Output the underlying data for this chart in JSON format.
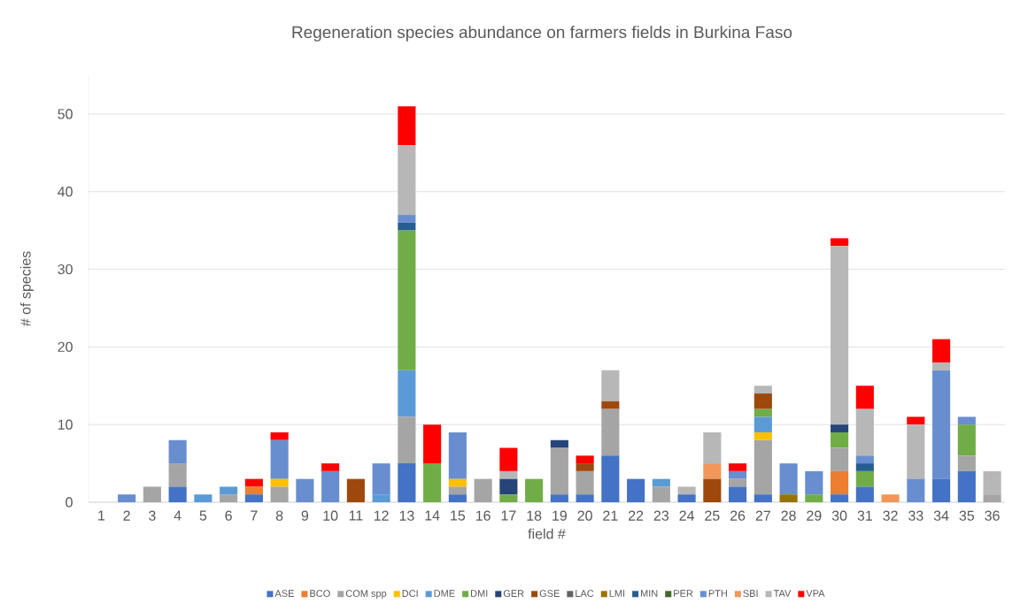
{
  "chart_data": {
    "type": "bar",
    "stacked": true,
    "title": "Regeneration species abundance on farmers fields in Burkina Faso",
    "xlabel": "field #",
    "ylabel": "# of species",
    "categories": [
      "1",
      "2",
      "3",
      "4",
      "5",
      "6",
      "7",
      "8",
      "9",
      "10",
      "11",
      "12",
      "13",
      "14",
      "15",
      "16",
      "17",
      "18",
      "19",
      "20",
      "21",
      "22",
      "23",
      "24",
      "25",
      "26",
      "27",
      "28",
      "29",
      "30",
      "31",
      "32",
      "33",
      "34",
      "35",
      "36"
    ],
    "ylim": [
      0,
      55
    ],
    "yticks": [
      0,
      10,
      20,
      30,
      40,
      50
    ],
    "grid": "y",
    "legend": "bottom",
    "series": [
      {
        "name": "ASE",
        "color": "#4472c4",
        "values": [
          0,
          0,
          0,
          2,
          0,
          0,
          1,
          0,
          0,
          0,
          0,
          0,
          5,
          0,
          1,
          0,
          0,
          0,
          1,
          1,
          6,
          3,
          0,
          1,
          0,
          2,
          1,
          0,
          0,
          1,
          2,
          0,
          0,
          3,
          4,
          0
        ]
      },
      {
        "name": "BCO",
        "color": "#ed7d31",
        "values": [
          0,
          0,
          0,
          0,
          0,
          0,
          1,
          0,
          0,
          0,
          0,
          0,
          0,
          0,
          0,
          0,
          0,
          0,
          0,
          0,
          0,
          0,
          0,
          0,
          0,
          0,
          0,
          0,
          0,
          3,
          0,
          0,
          0,
          0,
          0,
          0
        ]
      },
      {
        "name": "COM spp",
        "color": "#a5a5a5",
        "values": [
          0,
          0,
          2,
          3,
          0,
          1,
          0,
          2,
          0,
          0,
          0,
          0,
          6,
          0,
          1,
          3,
          0,
          0,
          6,
          3,
          6,
          0,
          2,
          0,
          0,
          1,
          7,
          0,
          0,
          3,
          0,
          0,
          0,
          0,
          2,
          1
        ]
      },
      {
        "name": "DCI",
        "color": "#ffc000",
        "values": [
          0,
          0,
          0,
          0,
          0,
          0,
          0,
          1,
          0,
          0,
          0,
          0,
          0,
          0,
          1,
          0,
          0,
          0,
          0,
          0,
          0,
          0,
          0,
          0,
          0,
          0,
          1,
          0,
          0,
          0,
          0,
          0,
          0,
          0,
          0,
          0
        ]
      },
      {
        "name": "DME",
        "color": "#5b9bd5",
        "values": [
          0,
          0,
          0,
          0,
          1,
          1,
          0,
          0,
          0,
          0,
          0,
          1,
          6,
          0,
          0,
          0,
          0,
          0,
          0,
          0,
          0,
          0,
          1,
          0,
          0,
          0,
          2,
          0,
          0,
          0,
          0,
          0,
          0,
          0,
          0,
          0
        ]
      },
      {
        "name": "DMI",
        "color": "#70ad47",
        "values": [
          0,
          0,
          0,
          0,
          0,
          0,
          0,
          0,
          0,
          0,
          0,
          0,
          18,
          5,
          0,
          0,
          1,
          3,
          0,
          0,
          0,
          0,
          0,
          0,
          0,
          0,
          1,
          0,
          1,
          2,
          2,
          0,
          0,
          0,
          4,
          0
        ]
      },
      {
        "name": "GER",
        "color": "#264478",
        "values": [
          0,
          0,
          0,
          0,
          0,
          0,
          0,
          0,
          0,
          0,
          0,
          0,
          0,
          0,
          0,
          0,
          2,
          0,
          1,
          0,
          0,
          0,
          0,
          0,
          0,
          0,
          0,
          0,
          0,
          1,
          0,
          0,
          0,
          0,
          0,
          0
        ]
      },
      {
        "name": "GSE",
        "color": "#9e480e",
        "values": [
          0,
          0,
          0,
          0,
          0,
          0,
          0,
          0,
          0,
          0,
          3,
          0,
          0,
          0,
          0,
          0,
          0,
          0,
          0,
          1,
          1,
          0,
          0,
          0,
          3,
          0,
          2,
          0,
          0,
          0,
          0,
          0,
          0,
          0,
          0,
          0
        ]
      },
      {
        "name": "LAC",
        "color": "#636363",
        "values": [
          0,
          0,
          0,
          0,
          0,
          0,
          0,
          0,
          0,
          0,
          0,
          0,
          0,
          0,
          0,
          0,
          0,
          0,
          0,
          0,
          0,
          0,
          0,
          0,
          0,
          0,
          0,
          0,
          0,
          0,
          0,
          0,
          0,
          0,
          0,
          0
        ]
      },
      {
        "name": "LMI",
        "color": "#997300",
        "values": [
          0,
          0,
          0,
          0,
          0,
          0,
          0,
          0,
          0,
          0,
          0,
          0,
          0,
          0,
          0,
          0,
          0,
          0,
          0,
          0,
          0,
          0,
          0,
          0,
          0,
          0,
          0,
          1,
          0,
          0,
          0,
          0,
          0,
          0,
          0,
          0
        ]
      },
      {
        "name": "MIN",
        "color": "#255e91",
        "values": [
          0,
          0,
          0,
          0,
          0,
          0,
          0,
          0,
          0,
          0,
          0,
          0,
          1,
          0,
          0,
          0,
          0,
          0,
          0,
          0,
          0,
          0,
          0,
          0,
          0,
          0,
          0,
          0,
          0,
          0,
          1,
          0,
          0,
          0,
          0,
          0
        ]
      },
      {
        "name": "PER",
        "color": "#43682b",
        "values": [
          0,
          0,
          0,
          0,
          0,
          0,
          0,
          0,
          0,
          0,
          0,
          0,
          0,
          0,
          0,
          0,
          0,
          0,
          0,
          0,
          0,
          0,
          0,
          0,
          0,
          0,
          0,
          0,
          0,
          0,
          0,
          0,
          0,
          0,
          0,
          0
        ]
      },
      {
        "name": "PTH",
        "color": "#698ed0",
        "values": [
          0,
          1,
          0,
          3,
          0,
          0,
          0,
          5,
          3,
          4,
          0,
          4,
          1,
          0,
          6,
          0,
          0,
          0,
          0,
          0,
          0,
          0,
          0,
          0,
          0,
          1,
          0,
          4,
          3,
          0,
          1,
          0,
          3,
          14,
          1,
          0
        ]
      },
      {
        "name": "SBI",
        "color": "#f1975a",
        "values": [
          0,
          0,
          0,
          0,
          0,
          0,
          0,
          0,
          0,
          0,
          0,
          0,
          0,
          0,
          0,
          0,
          0,
          0,
          0,
          0,
          0,
          0,
          0,
          0,
          2,
          0,
          0,
          0,
          0,
          0,
          0,
          1,
          0,
          0,
          0,
          0
        ]
      },
      {
        "name": "TAV",
        "color": "#b7b7b7",
        "values": [
          0,
          0,
          0,
          0,
          0,
          0,
          0,
          0,
          0,
          0,
          0,
          0,
          9,
          0,
          0,
          0,
          1,
          0,
          0,
          0,
          4,
          0,
          0,
          1,
          4,
          0,
          1,
          0,
          0,
          23,
          6,
          0,
          7,
          1,
          0,
          3
        ]
      },
      {
        "name": "VPA",
        "color": "#ff0000",
        "values": [
          0,
          0,
          0,
          0,
          0,
          0,
          1,
          1,
          0,
          1,
          0,
          0,
          5,
          5,
          0,
          0,
          3,
          0,
          0,
          1,
          0,
          0,
          0,
          0,
          0,
          1,
          0,
          0,
          0,
          1,
          3,
          0,
          1,
          3,
          0,
          0
        ]
      }
    ]
  }
}
